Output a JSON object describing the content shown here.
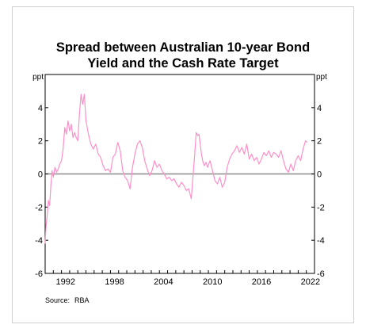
{
  "chart_data": {
    "type": "line",
    "title_lines": [
      "Spread between Australian 10-year Bond",
      "Yield and the Cash Rate Target"
    ],
    "unit_left": "ppt",
    "unit_right": "ppt",
    "xlim": [
      1990.0,
      2023.0
    ],
    "ylim": [
      -6,
      6
    ],
    "x_ticks": [
      "1992",
      "1998",
      "2004",
      "2010",
      "2016",
      "2022"
    ],
    "y_ticks": [
      "4",
      "2",
      "0",
      "-2",
      "-4",
      "-6"
    ],
    "zero_line": true,
    "series": [
      {
        "color": "#ff8fc8",
        "x": [
          1990.0,
          1990.1,
          1990.25,
          1990.4,
          1990.55,
          1990.7,
          1990.85,
          1991.0,
          1991.2,
          1991.4,
          1991.6,
          1991.8,
          1992.0,
          1992.2,
          1992.4,
          1992.6,
          1992.8,
          1993.0,
          1993.2,
          1993.4,
          1993.6,
          1993.8,
          1994.0,
          1994.2,
          1994.4,
          1994.6,
          1994.8,
          1995.0,
          1995.3,
          1995.6,
          1995.9,
          1996.2,
          1996.5,
          1996.8,
          1997.1,
          1997.4,
          1997.7,
          1998.0,
          1998.3,
          1998.6,
          1998.9,
          1999.2,
          1999.5,
          1999.8,
          2000.1,
          2000.4,
          2000.7,
          2001.0,
          2001.3,
          2001.6,
          2001.9,
          2002.2,
          2002.5,
          2002.8,
          2003.1,
          2003.4,
          2003.7,
          2004.0,
          2004.3,
          2004.6,
          2004.9,
          2005.2,
          2005.5,
          2005.8,
          2006.1,
          2006.4,
          2006.7,
          2007.0,
          2007.3,
          2007.6,
          2007.9,
          2008.1,
          2008.3,
          2008.5,
          2008.7,
          2008.85,
          2009.0,
          2009.15,
          2009.3,
          2009.5,
          2009.7,
          2009.9,
          2010.2,
          2010.5,
          2010.8,
          2011.1,
          2011.4,
          2011.7,
          2012.0,
          2012.3,
          2012.6,
          2012.9,
          2013.2,
          2013.5,
          2013.8,
          2014.1,
          2014.4,
          2014.7,
          2015.0,
          2015.3,
          2015.6,
          2015.9,
          2016.2,
          2016.5,
          2016.8,
          2017.1,
          2017.4,
          2017.7,
          2018.0,
          2018.3,
          2018.6,
          2018.9,
          2019.2,
          2019.5,
          2019.8,
          2020.1,
          2020.4,
          2020.7,
          2021.0,
          2021.3,
          2021.6,
          2021.9,
          2022.1
        ],
        "values": [
          -4.2,
          -3.2,
          -2.5,
          -1.6,
          -1.9,
          -0.7,
          0.2,
          -0.2,
          0.4,
          0.1,
          0.3,
          0.6,
          0.8,
          1.5,
          2.8,
          2.4,
          3.2,
          2.6,
          3.0,
          2.2,
          2.5,
          2.2,
          2.0,
          3.6,
          4.8,
          4.2,
          4.8,
          3.2,
          2.4,
          1.8,
          1.5,
          1.8,
          1.2,
          1.0,
          0.5,
          0.2,
          0.3,
          0.1,
          1.0,
          1.2,
          1.9,
          1.4,
          0.2,
          -0.2,
          -0.4,
          -0.9,
          0.4,
          1.2,
          1.8,
          2.0,
          1.6,
          0.8,
          0.3,
          -0.1,
          0.2,
          0.8,
          0.4,
          0.6,
          0.2,
          0.0,
          -0.3,
          -0.2,
          -0.4,
          -0.3,
          -0.6,
          -0.8,
          -0.5,
          -0.7,
          -1.0,
          -0.9,
          -1.5,
          -0.2,
          1.0,
          2.5,
          2.3,
          2.4,
          1.8,
          1.2,
          0.8,
          0.5,
          0.7,
          0.4,
          0.8,
          0.2,
          -0.4,
          -0.6,
          -0.2,
          -0.8,
          -0.5,
          0.4,
          0.9,
          1.2,
          1.4,
          1.7,
          1.3,
          1.6,
          1.2,
          1.8,
          0.9,
          1.2,
          0.8,
          1.0,
          0.6,
          0.9,
          1.3,
          1.1,
          1.4,
          1.0,
          1.3,
          1.2,
          1.0,
          1.4,
          0.8,
          0.3,
          0.1,
          0.6,
          0.2,
          0.8,
          1.1,
          0.8,
          1.5,
          2.0,
          1.9
        ]
      }
    ]
  },
  "source": {
    "label": "Source:",
    "value": "RBA"
  }
}
